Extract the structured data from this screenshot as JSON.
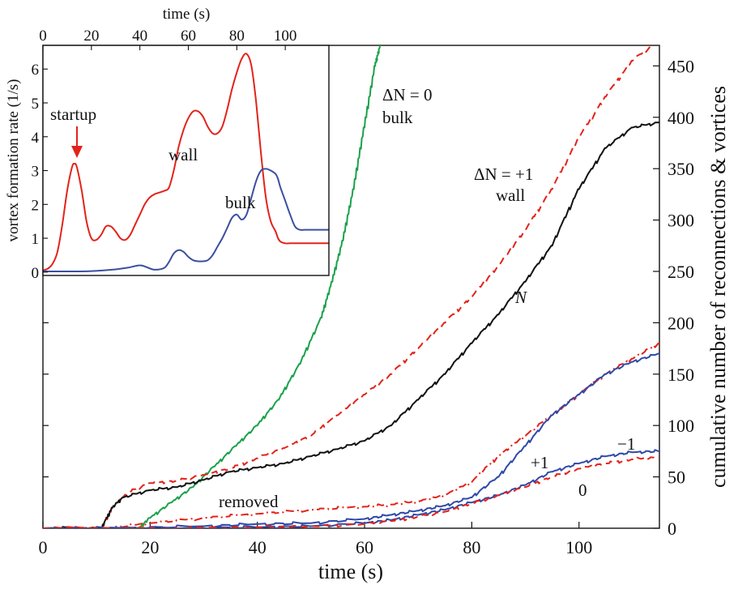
{
  "colors": {
    "black": "#111111",
    "red": "#e2231a",
    "blue": "#2e4aa8",
    "green": "#1aa14b",
    "bulk_inset": "#3a4fa0"
  },
  "chart_data": [
    {
      "type": "line",
      "title": "",
      "xlabel": "time  (s)",
      "ylabel": "cumulative number of reconnections & vortices",
      "xlim": [
        0,
        115
      ],
      "ylim": [
        0,
        470
      ],
      "x_ticks": [
        0,
        20,
        40,
        60,
        80,
        100
      ],
      "y_ticks_right": [
        0,
        50,
        100,
        150,
        200,
        250,
        300,
        350,
        400,
        450
      ],
      "series": [
        {
          "name": "ΔN = 0 bulk",
          "color": "green",
          "style": "solid",
          "x": [
            0,
            18,
            20,
            24,
            28,
            32,
            36,
            40,
            44,
            48,
            52,
            54,
            56,
            58,
            60,
            62,
            63
          ],
          "y": [
            0,
            0,
            10,
            25,
            40,
            60,
            80,
            100,
            125,
            160,
            205,
            240,
            280,
            330,
            390,
            450,
            470
          ]
        },
        {
          "name": "ΔN = +1 wall",
          "color": "red",
          "style": "dashed",
          "x": [
            0,
            11,
            13,
            16,
            20,
            25,
            30,
            35,
            40,
            45,
            50,
            55,
            60,
            65,
            70,
            75,
            80,
            85,
            90,
            95,
            100,
            105,
            110,
            115
          ],
          "y": [
            0,
            0,
            20,
            35,
            44,
            46,
            52,
            58,
            68,
            78,
            90,
            110,
            130,
            150,
            175,
            200,
            225,
            255,
            290,
            330,
            380,
            420,
            455,
            475
          ]
        },
        {
          "name": "N",
          "color": "black",
          "style": "solid",
          "x": [
            0,
            11,
            13,
            15,
            20,
            25,
            30,
            35,
            40,
            45,
            50,
            55,
            60,
            65,
            70,
            75,
            80,
            85,
            90,
            95,
            100,
            105,
            110,
            115
          ],
          "y": [
            0,
            0,
            20,
            30,
            37,
            40,
            47,
            55,
            59,
            63,
            70,
            77,
            85,
            100,
            125,
            150,
            180,
            208,
            240,
            275,
            330,
            370,
            390,
            395
          ]
        },
        {
          "name": "removed",
          "color": "red",
          "style": "dash-dot",
          "x": [
            0,
            12,
            20,
            30,
            40,
            50,
            60,
            65,
            70,
            75,
            80,
            85,
            90,
            95,
            100,
            105,
            110,
            115
          ],
          "y": [
            0,
            0,
            5,
            10,
            14,
            18,
            21,
            23,
            26,
            32,
            45,
            70,
            90,
            110,
            130,
            150,
            165,
            180
          ]
        },
        {
          "name": "+1",
          "color": "blue",
          "style": "solid",
          "x": [
            0,
            15,
            30,
            40,
            50,
            60,
            65,
            70,
            75,
            80,
            85,
            90,
            95,
            100,
            105,
            110,
            115
          ],
          "y": [
            0,
            0,
            2,
            4,
            5,
            9,
            13,
            17,
            22,
            30,
            50,
            80,
            110,
            130,
            150,
            162,
            170
          ]
        },
        {
          "name": "−1",
          "color": "blue",
          "style": "solid",
          "x": [
            0,
            25,
            40,
            50,
            60,
            65,
            70,
            75,
            80,
            85,
            90,
            95,
            100,
            105,
            110,
            115
          ],
          "y": [
            0,
            0,
            1,
            2,
            5,
            8,
            13,
            18,
            25,
            32,
            42,
            55,
            63,
            70,
            74,
            75
          ]
        },
        {
          "name": "0",
          "color": "red",
          "style": "dashed",
          "x": [
            0,
            25,
            40,
            50,
            60,
            65,
            70,
            75,
            80,
            85,
            90,
            95,
            100,
            105,
            110,
            115
          ],
          "y": [
            0,
            0,
            1,
            2,
            4,
            7,
            11,
            16,
            24,
            32,
            40,
            50,
            58,
            63,
            67,
            69
          ]
        }
      ],
      "annotations": {
        "bulk0_line1": "ΔN = 0",
        "bulk0_line2": "bulk",
        "wall1_line1": "ΔN = +1",
        "wall1_line2": "wall",
        "n_label": "N",
        "removed": "removed",
        "plus1": "+1",
        "minus1": "−1",
        "zero": "0"
      }
    },
    {
      "type": "line",
      "title": "",
      "xlabel": "time (s)",
      "ylabel": "vortex formation rate (1/s)",
      "xlim": [
        0,
        118
      ],
      "ylim": [
        -0.1,
        6.7
      ],
      "x_ticks": [
        0,
        20,
        40,
        60,
        80,
        100
      ],
      "y_ticks": [
        0,
        1,
        2,
        3,
        4,
        5,
        6
      ],
      "series": [
        {
          "name": "wall",
          "color": "red",
          "x": [
            0,
            2,
            4,
            6,
            8,
            10,
            12,
            13,
            14,
            16,
            18,
            20,
            22,
            24,
            26,
            28,
            30,
            32,
            34,
            36,
            38,
            40,
            42,
            44,
            46,
            48,
            50,
            52,
            54,
            56,
            58,
            60,
            62,
            64,
            66,
            68,
            70,
            72,
            74,
            76,
            78,
            80,
            82,
            84,
            86,
            88,
            90,
            92,
            94,
            96,
            97,
            98,
            100,
            102,
            104,
            106,
            108,
            110,
            112,
            114,
            116,
            118
          ],
          "y": [
            0.05,
            0.1,
            0.25,
            0.6,
            1.4,
            2.4,
            3.1,
            3.2,
            3.1,
            2.4,
            1.5,
            1.0,
            0.95,
            1.1,
            1.35,
            1.35,
            1.2,
            1.0,
            0.95,
            1.1,
            1.4,
            1.7,
            2.0,
            2.2,
            2.3,
            2.35,
            2.4,
            2.5,
            3.0,
            3.7,
            4.2,
            4.55,
            4.75,
            4.75,
            4.6,
            4.3,
            4.1,
            4.1,
            4.3,
            4.8,
            5.4,
            5.9,
            6.3,
            6.45,
            6.1,
            5.0,
            3.5,
            2.2,
            1.5,
            1.2,
            1.0,
            0.9,
            0.85,
            0.85,
            0.85,
            0.85,
            0.85,
            0.85,
            0.85,
            0.85,
            0.85,
            0.85
          ]
        },
        {
          "name": "bulk",
          "color": "blue",
          "x": [
            0,
            5,
            10,
            15,
            20,
            25,
            30,
            35,
            40,
            43,
            46,
            50,
            52,
            54,
            56,
            58,
            60,
            62,
            64,
            66,
            68,
            70,
            72,
            74,
            76,
            78,
            80,
            82,
            84,
            86,
            88,
            90,
            92,
            94,
            96,
            97,
            98,
            100,
            102,
            104,
            106,
            108,
            110,
            112,
            114,
            116,
            118
          ],
          "y": [
            0.02,
            0.02,
            0.02,
            0.02,
            0.03,
            0.05,
            0.08,
            0.13,
            0.2,
            0.14,
            0.07,
            0.12,
            0.3,
            0.55,
            0.65,
            0.6,
            0.45,
            0.35,
            0.32,
            0.32,
            0.35,
            0.5,
            0.75,
            1.0,
            1.3,
            1.6,
            1.7,
            1.55,
            1.7,
            2.2,
            2.7,
            3.0,
            3.05,
            3.0,
            2.9,
            2.75,
            2.5,
            2.1,
            1.7,
            1.35,
            1.25,
            1.25,
            1.25,
            1.25,
            1.25,
            1.25,
            1.25
          ]
        }
      ],
      "annotations": {
        "startup": "startup",
        "wall": "wall",
        "bulk": "bulk"
      }
    }
  ]
}
